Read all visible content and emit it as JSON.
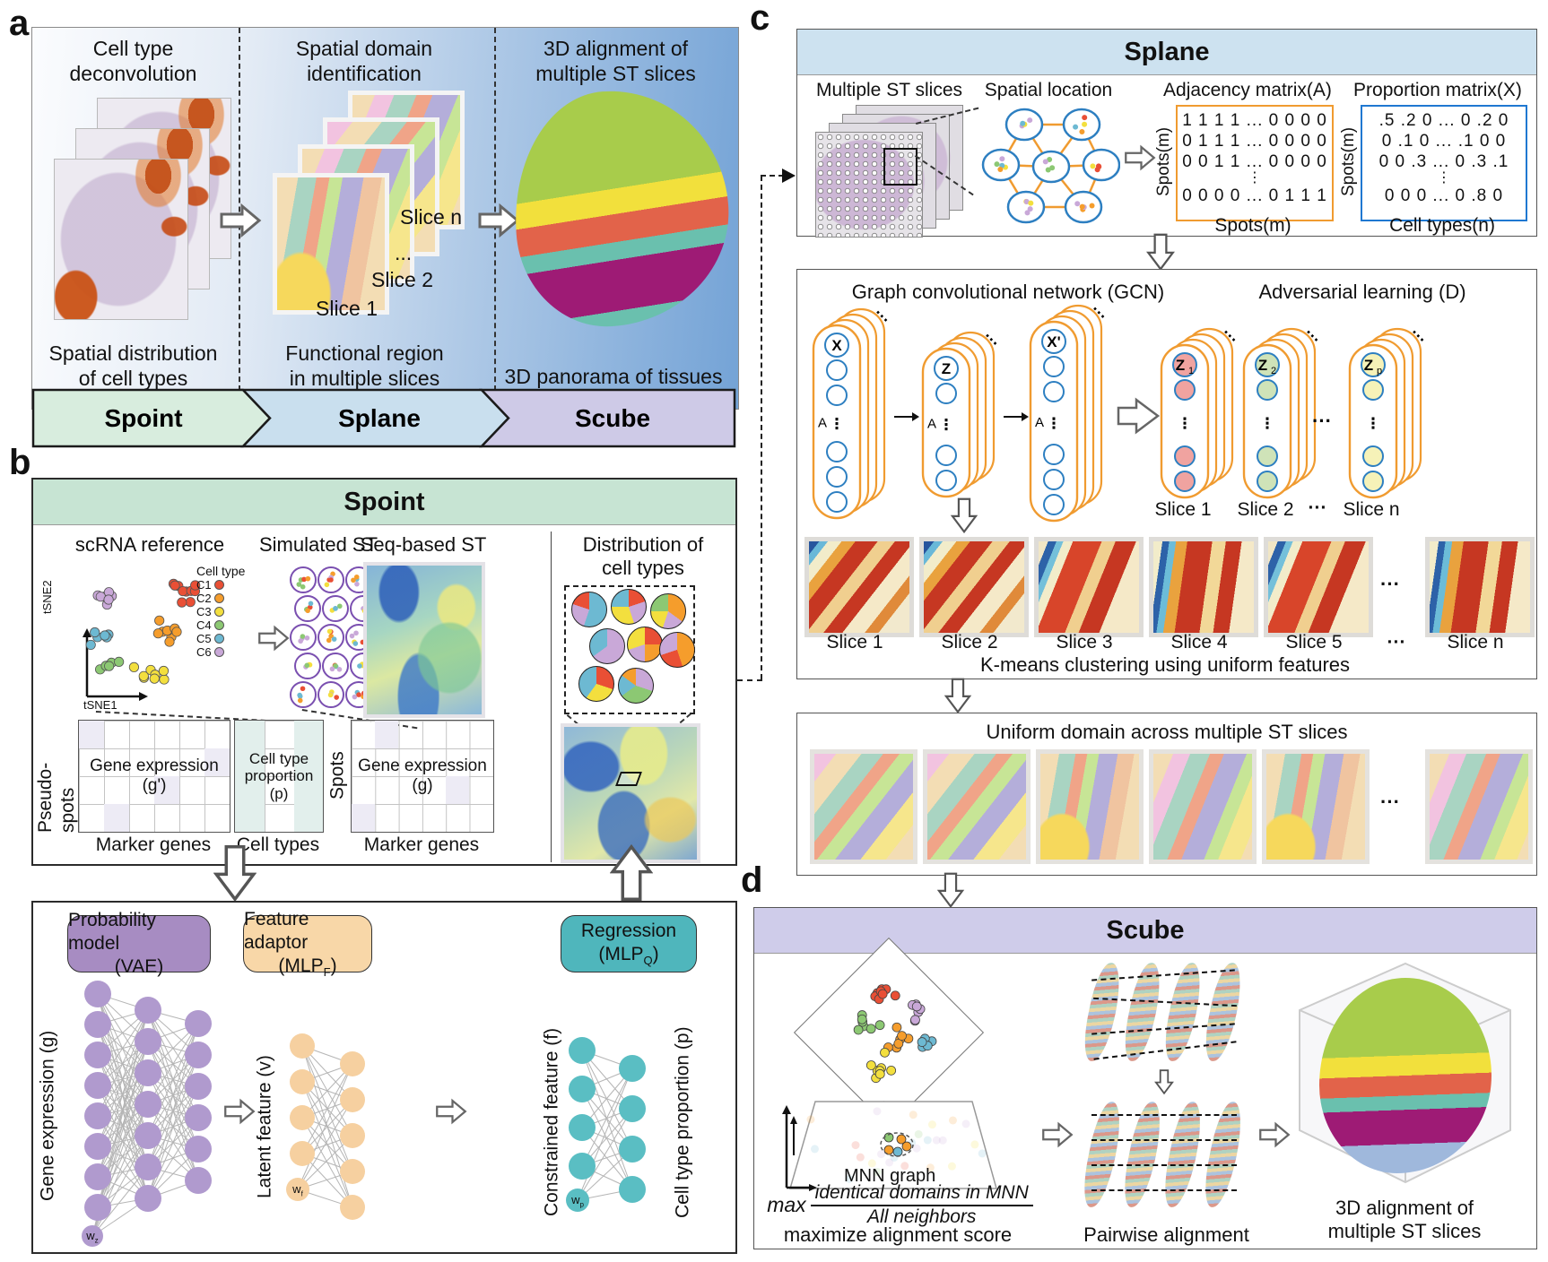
{
  "colors": {
    "spoint_band": "#c7e4d3",
    "splane_band": "#cde2f0",
    "scube_band": "#cfccea",
    "banner_spoint": "#d8edde",
    "banner_splane": "#c9dfee",
    "banner_scube": "#cecae7",
    "vae_fill": "#a78cc2",
    "vae_node": "#b09ace",
    "adaptor_fill": "#f8d7a8",
    "adaptor_node": "#f6d0a0",
    "regression_fill": "#4fb6bc",
    "regression_node": "#5abec3",
    "gcn_outline": "#f09b30",
    "node_outline": "#2d7fc1",
    "z1_fill": "#f0a3a0",
    "z2_fill": "#cfe3b8",
    "zn_fill": "#f6f2b8",
    "adjacency_border": "#f09b30",
    "proportion_border": "#1f78d1",
    "c1": "#e94f35",
    "c2": "#f59d2c",
    "c3": "#f3df3e",
    "c4": "#8cc873",
    "c5": "#6db9d2",
    "c6": "#c9a8d8"
  },
  "panel_a": {
    "label": "a",
    "col1_title_1": "Cell type",
    "col1_title_2": "deconvolution",
    "col2_title_1": "Spatial domain",
    "col2_title_2": "identification",
    "col3_title_1": "3D alignment of",
    "col3_title_2": "multiple ST slices",
    "slice_n": "Slice n",
    "slice_dots": "...",
    "slice_2": "Slice 2",
    "slice_1": "Slice 1",
    "col1_caption_1": "Spatial distribution",
    "col1_caption_2": "of cell types",
    "col2_caption_1": "Functional region",
    "col2_caption_2": "in multiple slices",
    "col3_caption": "3D panorama of tissues",
    "banner_spoint": "Spoint",
    "banner_splane": "Splane",
    "banner_scube": "Scube"
  },
  "panel_b": {
    "label": "b",
    "header": "Spoint",
    "col_scrna": "scRNA reference",
    "col_sim": "Simulated ST",
    "col_seq": "Seq-based ST",
    "col_dist_1": "Distribution of",
    "col_dist_2": "cell types",
    "tsne_y": "tSNE2",
    "tsne_x": "tSNE1",
    "legend_title": "Cell type",
    "legend": [
      {
        "label": "C1"
      },
      {
        "label": "C2"
      },
      {
        "label": "C3"
      },
      {
        "label": "C4"
      },
      {
        "label": "C5"
      },
      {
        "label": "C6"
      }
    ],
    "pseudo_spots": "Pseudo-spots",
    "spots": "Spots",
    "m1_line1": "Gene expression",
    "m1_line2": "(g')",
    "m1_caption": "Marker genes",
    "m2_line1": "Cell type",
    "m2_line2": "proportion",
    "m2_line3": "(p)",
    "m2_caption": "Cell types",
    "m3_line1": "Gene expression",
    "m3_line2": "(g)",
    "m3_caption": "Marker genes",
    "vae_line1": "Probability model",
    "vae_line2": "(VAE)",
    "adaptor_line1": "Feature adaptor",
    "adaptor_base": "(MLP",
    "adaptor_sub": "F",
    "adaptor_close": ")",
    "regression_line1": "Regression",
    "regression_base": "(MLP",
    "regression_sub": "Q",
    "regression_close": ")",
    "axis_gene": "Gene expression (g)",
    "axis_latent": "Latent feature (v)",
    "axis_constrained": "Constrained feature (f)",
    "axis_cellprop": "Cell type proportion (p)",
    "w_z_base": "w",
    "w_z_sub": "z",
    "w_f_base": "w",
    "w_f_sub": "f",
    "w_p_base": "w",
    "w_p_sub": "p"
  },
  "panel_c": {
    "label": "c",
    "header": "Splane",
    "multiple_st": "Multiple ST slices",
    "spatial_location": "Spatial location",
    "adj_title": "Adjacency matrix(A)",
    "prop_title": "Proportion matrix(X)",
    "adj_rows": [
      "1 1 1 1 ... 0 0 0 0",
      "0 1 1 1 ... 0 0 0 0",
      "0 0 1 1 ... 0 0 0 0",
      "⋮",
      "0 0 0 0 ... 0 1 1 1"
    ],
    "prop_rows": [
      ".5 .2 0 ... 0 .2 0",
      "0 .1 0 ... .1 0 0",
      "0 0 .3 ... 0 .3 .1",
      "⋮",
      "0 0 0 ... 0 .8 0"
    ],
    "adj_row_label": "Spots(m)",
    "adj_col_label": "Spots(m)",
    "prop_row_label": "Spots(m)",
    "prop_col_label": "Cell types(n)",
    "gcn_title": "Graph convolutional network (GCN)",
    "adv_title": "Adversarial learning (D)",
    "x_label": "X",
    "z_label": "Z",
    "xp_label": "X'",
    "a_label": "A",
    "vdots": "⋮",
    "stack_dots": "···",
    "z_base": "Z",
    "z1_sub": "1",
    "z2_sub": "2",
    "zn_sub": "p",
    "gcn_slice_1": "Slice 1",
    "gcn_slice_2": "Slice 2",
    "gcn_slice_dots": "···",
    "gcn_slice_n": "Slice n",
    "km_slices": [
      "Slice 1",
      "Slice 2",
      "Slice 3",
      "Slice 4",
      "Slice 5"
    ],
    "km_dots": "···",
    "km_slice_n": "Slice n",
    "km_caption": "K-means clustering using uniform features",
    "uniform_title": "Uniform domain across multiple ST slices",
    "uniform_dots": "···"
  },
  "panel_d": {
    "label": "d",
    "header": "Scube",
    "mnn_label": "MNN graph",
    "formula_max": "max",
    "formula_num": "identical domains in MNN",
    "formula_den": "All neighbors",
    "caption_left": "maximize alignment score",
    "caption_mid": "Pairwise alignment",
    "caption_right_1": "3D alignment of",
    "caption_right_2": "multiple ST slices"
  }
}
